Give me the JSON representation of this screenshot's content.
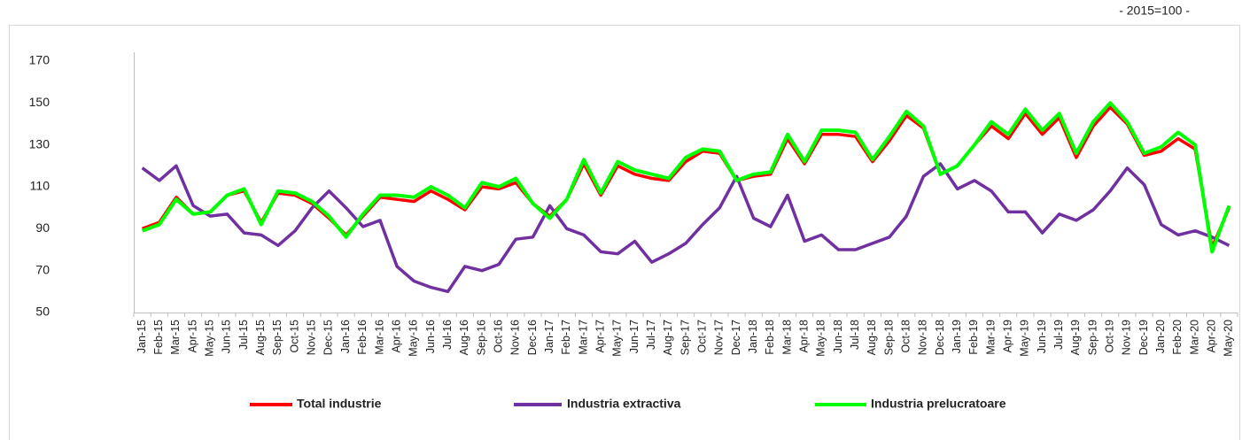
{
  "chart_data": {
    "type": "line",
    "subtitle": "- 2015=100 -",
    "categories": [
      "Jan-15",
      "Feb-15",
      "Mar-15",
      "Apr-15",
      "May-15",
      "Jun-15",
      "Jul-15",
      "Aug-15",
      "Sep-15",
      "Oct-15",
      "Nov-15",
      "Dec-15",
      "Jan-16",
      "Feb-16",
      "Mar-16",
      "Apr-16",
      "May-16",
      "Jun-16",
      "Jul-16",
      "Aug-16",
      "Sep-16",
      "Oct-16",
      "Nov-16",
      "Dec-16",
      "Jan-17",
      "Feb-17",
      "Mar-17",
      "Apr-17",
      "May-17",
      "Jun-17",
      "Jul-17",
      "Aug-17",
      "Sep-17",
      "Oct-17",
      "Nov-17",
      "Dec-17",
      "Jan-18",
      "Feb-18",
      "Mar-18",
      "Apr-18",
      "May-18",
      "Jun-18",
      "Jul-18",
      "Aug-18",
      "Sep-18",
      "Oct-18",
      "Nov-18",
      "Dec-18",
      "Jan-19",
      "Feb-19",
      "Mar-19",
      "Apr-19",
      "May-19",
      "Jun-19",
      "Jul-19",
      "Aug-19",
      "Sep-19",
      "Oct-19",
      "Nov-19",
      "Dec-19",
      "Jan-20",
      "Feb-20",
      "Mar-20",
      "Apr-20",
      "May-20"
    ],
    "series": [
      {
        "name": "Total industrie",
        "color": "#ff0000",
        "values": [
          90,
          93,
          105,
          97,
          98,
          106,
          108,
          93,
          107,
          106,
          102,
          95,
          87,
          96,
          105,
          104,
          103,
          108,
          104,
          99,
          110,
          109,
          112,
          102,
          96,
          104,
          121,
          106,
          120,
          116,
          114,
          113,
          122,
          127,
          126,
          113,
          115,
          116,
          133,
          121,
          135,
          135,
          134,
          122,
          132,
          144,
          138,
          116,
          120,
          130,
          139,
          133,
          145,
          135,
          143,
          124,
          139,
          148,
          140,
          125,
          127,
          133,
          128,
          81,
          100
        ]
      },
      {
        "name": "Industria extractiva",
        "color": "#7030a0",
        "values": [
          119,
          113,
          120,
          101,
          96,
          97,
          88,
          87,
          82,
          89,
          100,
          108,
          100,
          91,
          94,
          72,
          65,
          62,
          60,
          72,
          70,
          73,
          85,
          86,
          101,
          90,
          87,
          79,
          78,
          84,
          74,
          78,
          83,
          92,
          100,
          115,
          95,
          91,
          106,
          84,
          87,
          80,
          80,
          83,
          86,
          96,
          115,
          121,
          109,
          113,
          108,
          98,
          98,
          88,
          97,
          94,
          99,
          108,
          119,
          111,
          92,
          87,
          89,
          86,
          82
        ]
      },
      {
        "name": "Industria prelucratoare",
        "color": "#00ff00",
        "values": [
          89,
          92,
          104,
          97,
          98,
          106,
          109,
          92,
          108,
          107,
          103,
          96,
          86,
          97,
          106,
          106,
          105,
          110,
          106,
          100,
          112,
          110,
          114,
          102,
          95,
          104,
          123,
          107,
          122,
          118,
          116,
          114,
          124,
          128,
          127,
          113,
          116,
          117,
          135,
          122,
          137,
          137,
          136,
          123,
          134,
          146,
          139,
          116,
          120,
          130,
          141,
          135,
          147,
          137,
          145,
          126,
          141,
          150,
          141,
          126,
          129,
          136,
          130,
          79,
          101
        ]
      }
    ],
    "ylim": [
      50,
      170
    ],
    "yticks": [
      50,
      70,
      90,
      110,
      130,
      150,
      170
    ],
    "grid": false
  }
}
